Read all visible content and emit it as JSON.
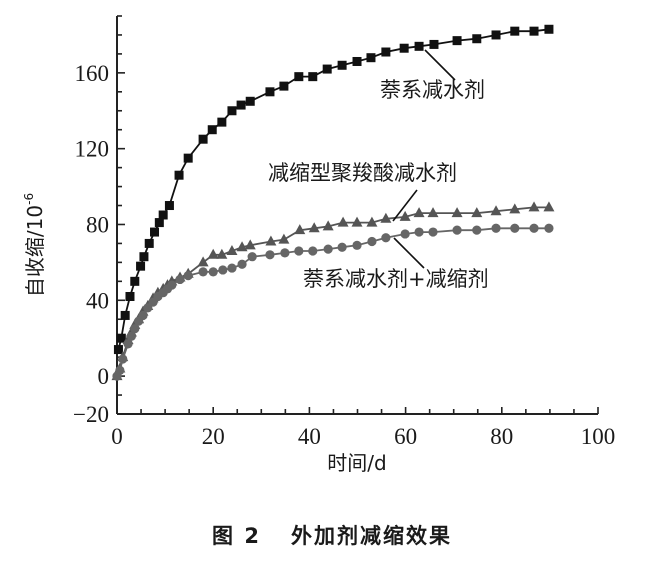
{
  "chart_data": {
    "type": "line",
    "title": "",
    "xlabel": "时间/d",
    "ylabel": "自收缩/10",
    "ylabel_sup": "-6",
    "xlim": [
      0,
      100
    ],
    "ylim": [
      -20,
      190
    ],
    "x_ticks": [
      0,
      20,
      40,
      60,
      80,
      100
    ],
    "y_ticks": [
      -20,
      0,
      40,
      80,
      120,
      160
    ],
    "x_minor_step": 5,
    "y_minor_step": 10,
    "grid": false,
    "legend": "inline annotations with leader lines",
    "series": [
      {
        "name": "萘系减水剂",
        "marker": "square",
        "color": "#111111",
        "x": [
          0.3,
          0.9,
          1.7,
          2.7,
          3.7,
          4.9,
          5.6,
          6.7,
          7.8,
          8.8,
          9.6,
          10.9,
          12.9,
          14.8,
          17.9,
          19.8,
          21.8,
          23.9,
          25.8,
          27.7,
          31.8,
          34.7,
          37.8,
          40.7,
          43.7,
          46.8,
          49.9,
          52.8,
          55.9,
          59.7,
          62.8,
          65.9,
          70.7,
          74.8,
          78.8,
          82.7,
          86.7,
          89.8
        ],
        "y": [
          14,
          20,
          32,
          42,
          50,
          58,
          63,
          70,
          76,
          81,
          85,
          90,
          106,
          115,
          125,
          130,
          134,
          140,
          143,
          145,
          150,
          153,
          158,
          158,
          162,
          164,
          166,
          168,
          171,
          173,
          174,
          175,
          177,
          178,
          180,
          182,
          182,
          183
        ]
      },
      {
        "name": "减缩型聚羧酸减水剂",
        "marker": "triangle",
        "color": "#555555",
        "x": [
          0,
          0.6,
          1.2,
          2.3,
          3.0,
          3.7,
          4.5,
          5.4,
          6.4,
          7.5,
          8.5,
          9.6,
          10.5,
          11.4,
          13.1,
          14.8,
          17.9,
          20.0,
          21.8,
          23.9,
          26.0,
          27.7,
          32.0,
          34.7,
          38.0,
          41.0,
          43.9,
          47.0,
          49.9,
          53.0,
          55.9,
          59.9,
          62.8,
          65.7,
          70.7,
          74.8,
          78.8,
          82.7,
          86.7,
          89.8
        ],
        "y": [
          0,
          4,
          10,
          19,
          23,
          27,
          30,
          34,
          37,
          41,
          44,
          46,
          48,
          50,
          52,
          54,
          60,
          64,
          64,
          66,
          68,
          69,
          71,
          72,
          77,
          78,
          79,
          81,
          81,
          81,
          83,
          84,
          86,
          86,
          86,
          86,
          87,
          88,
          89,
          89
        ]
      },
      {
        "name": "萘系减水剂+减缩剂",
        "marker": "circle",
        "color": "#666666",
        "x": [
          0,
          0.6,
          1.2,
          2.3,
          3.0,
          3.7,
          4.5,
          5.4,
          6.4,
          7.5,
          8.5,
          9.6,
          10.5,
          11.4,
          13.1,
          14.8,
          17.9,
          20.0,
          22.0,
          23.9,
          26.0,
          28.1,
          31.8,
          34.9,
          37.8,
          40.7,
          43.9,
          46.8,
          49.9,
          53.0,
          55.9,
          59.9,
          62.8,
          65.7,
          70.7,
          74.8,
          78.8,
          82.7,
          86.7,
          89.8
        ],
        "y": [
          0,
          3,
          9,
          17,
          21,
          25,
          29,
          32,
          36,
          39,
          42,
          44,
          46,
          48,
          51,
          53,
          55,
          55,
          56,
          57,
          59,
          63,
          64,
          65,
          66,
          66,
          67,
          68,
          69,
          71,
          73,
          75,
          76,
          76,
          77,
          77,
          78,
          78,
          78,
          78
        ]
      }
    ],
    "annotations": [
      {
        "text": "萘系减水剂",
        "series": 0
      },
      {
        "text": "减缩型聚羧酸减水剂",
        "series": 1
      },
      {
        "text": "萘系减水剂+减缩剂",
        "series": 2
      }
    ]
  },
  "caption": {
    "figure_number": "图 2",
    "text": "外加剂减缩效果"
  }
}
